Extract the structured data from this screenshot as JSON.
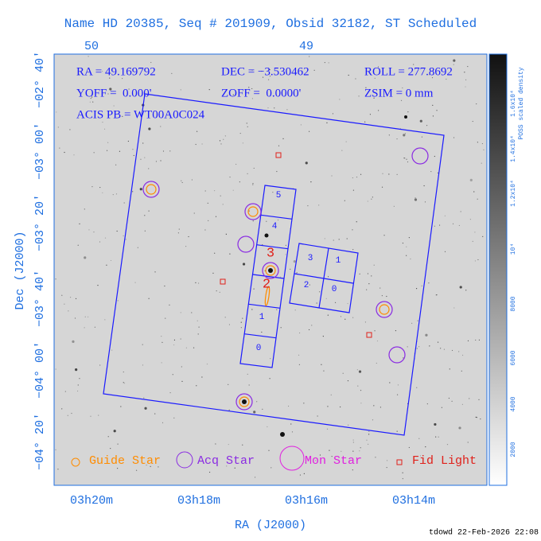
{
  "title": "Name HD 20385, Seq # 201909, Obsid 32182, ST Scheduled",
  "top_axis": {
    "ticks": [
      "50",
      "49"
    ]
  },
  "header": {
    "ra": "RA = 49.169792",
    "dec": "DEC = −3.530462",
    "roll": "ROLL = 277.8692",
    "yoff": "YOFF =  0.000'",
    "zoff": "ZOFF =  0.0000'",
    "zsim": "ZSIM = 0 mm",
    "acis": "ACIS PB = WT00A0C024"
  },
  "chips": {
    "s": [
      "0",
      "1",
      "2",
      "3",
      "4",
      "5"
    ],
    "i": [
      "0",
      "1",
      "2",
      "3"
    ]
  },
  "y_axis": {
    "label": "Dec (J2000)",
    "ticks": [
      "−02° 40′",
      "−03° 00′",
      "−03° 20′",
      "−03° 40′",
      "−04° 00′",
      "−04° 20′"
    ]
  },
  "x_axis": {
    "label": "RA (J2000)",
    "ticks": [
      "03h20m",
      "03h18m",
      "03h16m",
      "03h14m"
    ]
  },
  "colorbar": {
    "label": "POSS scaled density",
    "ticks": [
      "2000",
      "4000",
      "6000",
      "8000",
      "10⁴",
      "1.2x10⁴",
      "1.4x10⁴",
      "1.6x10⁴"
    ]
  },
  "legend": [
    "Guide Star",
    "Acq Star",
    "Mon Star",
    "Fid Light"
  ],
  "footer": "tdowd 22-Feb-2026 22:08"
}
